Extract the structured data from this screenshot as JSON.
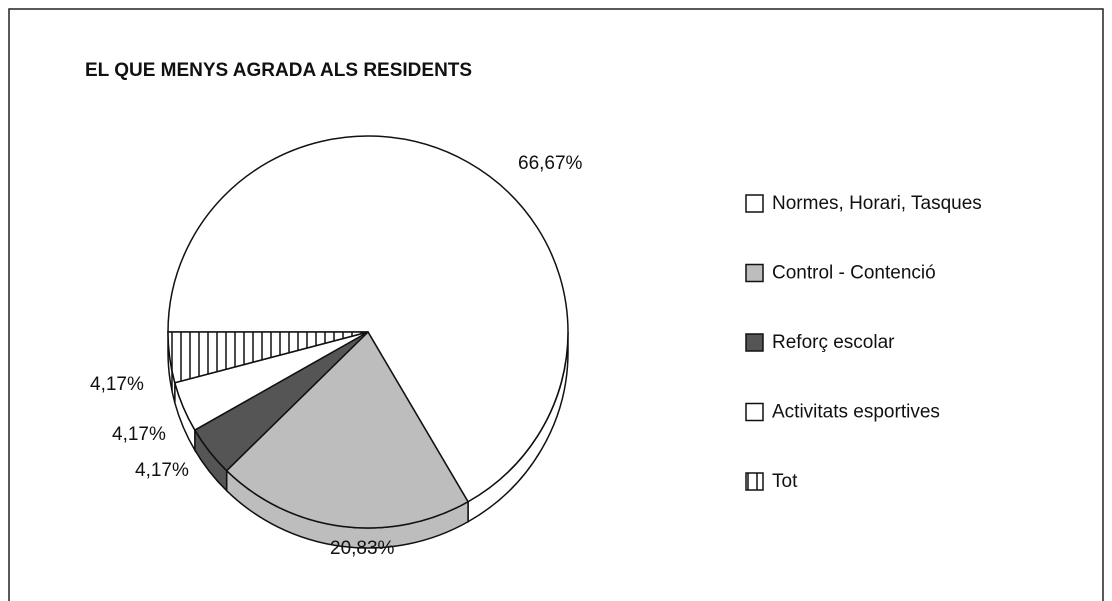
{
  "chart_data": {
    "type": "pie",
    "title": "EL QUE MENYS AGRADA ALS RESIDENTS",
    "categories": [
      "Normes, Horari, Tasques",
      "Control - Contenció",
      "Reforç escolar",
      "Activitats esportives",
      "Tot"
    ],
    "values": [
      66.67,
      20.83,
      4.17,
      4.17,
      4.17
    ],
    "value_labels": [
      "66,67%",
      "20,83%",
      "4,17%",
      "4,17%",
      "4,17%"
    ],
    "colors": [
      "#ffffff",
      "#bdbdbd",
      "#555555",
      "#ffffff",
      "hatch"
    ],
    "legend": "right"
  }
}
